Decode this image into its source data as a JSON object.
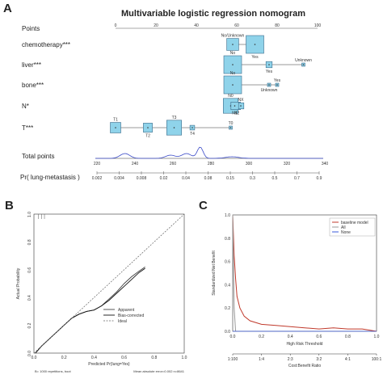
{
  "panels": {
    "a": "A",
    "b": "B",
    "c": "C"
  },
  "chart_data": [
    {
      "type": "nomogram",
      "title": "Multivariable  logistic regression nomogram",
      "points_axis": {
        "label": "Points",
        "ticks": [
          0,
          20,
          40,
          60,
          80,
          100
        ]
      },
      "variables": [
        {
          "label": "chemotherapy***",
          "boxes": [
            {
              "name": "No/Unknown",
              "points": 58,
              "size": 0.6
            },
            {
              "name": "Yes",
              "points": 69,
              "size": 1.0
            }
          ]
        },
        {
          "label": "liver***",
          "boxes": [
            {
              "name": "No",
              "points": 58,
              "size": 1.0
            },
            {
              "name": "Yes",
              "points": 76,
              "size": 0.2
            },
            {
              "name": "Unknown",
              "points": 93,
              "size": 0.0
            }
          ]
        },
        {
          "label": "bone***",
          "boxes": [
            {
              "name": "No",
              "points": 58,
              "size": 1.0
            },
            {
              "name": "Unknown",
              "points": 76,
              "size": 0.0
            },
            {
              "name": "Yes",
              "points": 80,
              "size": 0.0
            }
          ]
        },
        {
          "label": "N*",
          "boxes": [
            {
              "name": "N0",
              "points": 57,
              "size": 0.8
            },
            {
              "name": "N2",
              "points": 60,
              "size": 0.3
            },
            {
              "name": "NX",
              "points": 62,
              "size": 0.2
            },
            {
              "name": "N1",
              "points": 59,
              "size": 0.3
            }
          ]
        },
        {
          "label": "T***",
          "boxes": [
            {
              "name": "T1",
              "points": 0,
              "size": 0.5
            },
            {
              "name": "T2",
              "points": 16,
              "size": 0.4
            },
            {
              "name": "T3",
              "points": 29,
              "size": 0.8
            },
            {
              "name": "T4",
              "points": 38,
              "size": 0.1
            },
            {
              "name": "T0",
              "points": 57,
              "size": 0.0
            }
          ]
        }
      ],
      "total_points": {
        "label": "Total points",
        "ticks": [
          220,
          240,
          260,
          280,
          300,
          320,
          340
        ]
      },
      "risk": {
        "label": "Pr( lung-metastasis )",
        "ticks": [
          "0.002",
          "0.004",
          "0.008",
          "0.02",
          "0.04",
          "0.08",
          "0.15",
          "0.3",
          "0.5",
          "0.7",
          "0.9"
        ]
      }
    },
    {
      "type": "line",
      "xlabel": "Predicted Pr{lung=Yes}",
      "ylabel": "Actual Probability",
      "xlim": [
        0.0,
        1.0
      ],
      "ylim": [
        0.0,
        1.0
      ],
      "xticks": [
        "0.0",
        "0.2",
        "0.4",
        "0.6",
        "0.8",
        "1.0"
      ],
      "yticks": [
        "0.0",
        "0.2",
        "0.4",
        "0.6",
        "0.8",
        "1.0"
      ],
      "legend": [
        "Apparent",
        "Bias-corrected",
        "Ideal"
      ],
      "series": [
        {
          "name": "Apparent",
          "x": [
            0.01,
            0.05,
            0.1,
            0.15,
            0.2,
            0.25,
            0.3,
            0.35,
            0.4,
            0.45,
            0.5,
            0.55,
            0.6,
            0.65,
            0.7,
            0.74
          ],
          "y": [
            0.0,
            0.05,
            0.1,
            0.15,
            0.2,
            0.25,
            0.28,
            0.3,
            0.31,
            0.34,
            0.39,
            0.44,
            0.5,
            0.55,
            0.59,
            0.62
          ]
        },
        {
          "name": "Bias-corrected",
          "x": [
            0.01,
            0.05,
            0.1,
            0.15,
            0.2,
            0.25,
            0.3,
            0.35,
            0.4,
            0.45,
            0.5,
            0.55,
            0.6,
            0.65,
            0.7,
            0.74
          ],
          "y": [
            0.0,
            0.05,
            0.1,
            0.15,
            0.2,
            0.25,
            0.28,
            0.3,
            0.31,
            0.34,
            0.38,
            0.43,
            0.48,
            0.53,
            0.58,
            0.61
          ]
        },
        {
          "name": "Ideal",
          "x": [
            0.0,
            1.0
          ],
          "y": [
            0.0,
            1.0
          ]
        }
      ],
      "footnote_left": "B= 1000 repetitions, boot",
      "footnote_right": "Mean absolute error=0.002 n=8641"
    },
    {
      "type": "line",
      "xlabel": "High Risk Threshold",
      "ylabel": "Standardized Net Benefit",
      "secondary_xlabel": "Cost:Benefit Ratio",
      "xlim": [
        0.0,
        1.0
      ],
      "ylim": [
        0.0,
        1.0
      ],
      "xticks": [
        "0.0",
        "0.2",
        "0.4",
        "0.6",
        "0.8",
        "1.0"
      ],
      "yticks": [
        "0.0",
        "0.2",
        "0.4",
        "0.6",
        "0.8",
        "1.0"
      ],
      "secondary_ticks": [
        "1:100",
        "1:4",
        "2:3",
        "3:2",
        "4:1",
        "100:1"
      ],
      "legend": [
        "baseline model",
        "All",
        "None"
      ],
      "series": [
        {
          "name": "baseline model",
          "x": [
            0.0,
            0.01,
            0.02,
            0.03,
            0.05,
            0.08,
            0.12,
            0.2,
            0.3,
            0.4,
            0.5,
            0.6,
            0.7,
            0.8,
            0.9,
            1.0
          ],
          "y": [
            1.0,
            0.65,
            0.45,
            0.3,
            0.2,
            0.13,
            0.09,
            0.06,
            0.05,
            0.04,
            0.03,
            0.02,
            0.03,
            0.02,
            0.02,
            0.0
          ]
        },
        {
          "name": "All",
          "x": [
            0.0,
            0.005,
            0.01,
            0.02
          ],
          "y": [
            1.0,
            0.6,
            0.2,
            0.0
          ]
        },
        {
          "name": "None",
          "x": [
            0.0,
            1.0
          ],
          "y": [
            0.0,
            0.0
          ]
        }
      ],
      "colors": {
        "baseline model": "#c0392b",
        "All": "#9a9a9a",
        "None": "#3b5bdb"
      }
    }
  ]
}
